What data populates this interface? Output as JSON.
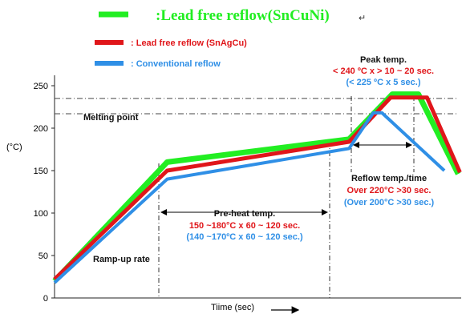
{
  "chart_data": {
    "type": "line",
    "title": ":Lead free reflow(SnCuNi)",
    "xlabel": "Tiime (sec)",
    "ylabel": "(°C)",
    "ylim": [
      0,
      260
    ],
    "yticks": [
      0,
      50,
      100,
      150,
      200,
      250
    ],
    "grid": false,
    "legend_position": "top-left",
    "series": [
      {
        "name": ":Lead free reflow(SnCuNi)",
        "color": "#22ee22",
        "points": [
          [
            0,
            20
          ],
          [
            130,
            160
          ],
          [
            340,
            187
          ],
          [
            390,
            240
          ],
          [
            420,
            240
          ],
          [
            466,
            146
          ]
        ]
      },
      {
        "name": ": Lead free reflow (SnAgCu)",
        "color": "#e0161a",
        "points": [
          [
            0,
            22
          ],
          [
            130,
            150
          ],
          [
            340,
            184
          ],
          [
            388,
            236
          ],
          [
            430,
            236
          ],
          [
            468,
            148
          ]
        ]
      },
      {
        "name": ": Conventional reflow",
        "color": "#2f8fe6",
        "points": [
          [
            0,
            18
          ],
          [
            130,
            140
          ],
          [
            340,
            176
          ],
          [
            368,
            218
          ],
          [
            378,
            218
          ],
          [
            450,
            150
          ]
        ]
      }
    ],
    "reference_lines": [
      {
        "label": "Melting point",
        "y": 217
      },
      {
        "label": "",
        "y": 235
      }
    ],
    "annotations": {
      "peak_title": "Peak temp.",
      "peak_red": "< 240 ºC x > 10 ~ 20 sec.",
      "peak_blue": "(< 225 ºC x 5 sec.)",
      "reflow_title": "Reflow temp./time",
      "reflow_red": "Over 220°C >30 sec.",
      "reflow_blue": "(Over 200°C >30 sec.)",
      "preheat_title": "Pre-heat temp.",
      "preheat_red": "150 ~180°C x 60 ~ 120 sec.",
      "preheat_blue": "(140 ~170ºC x 60 ~ 120 sec.)",
      "ramp": "Ramp-up rate"
    }
  }
}
